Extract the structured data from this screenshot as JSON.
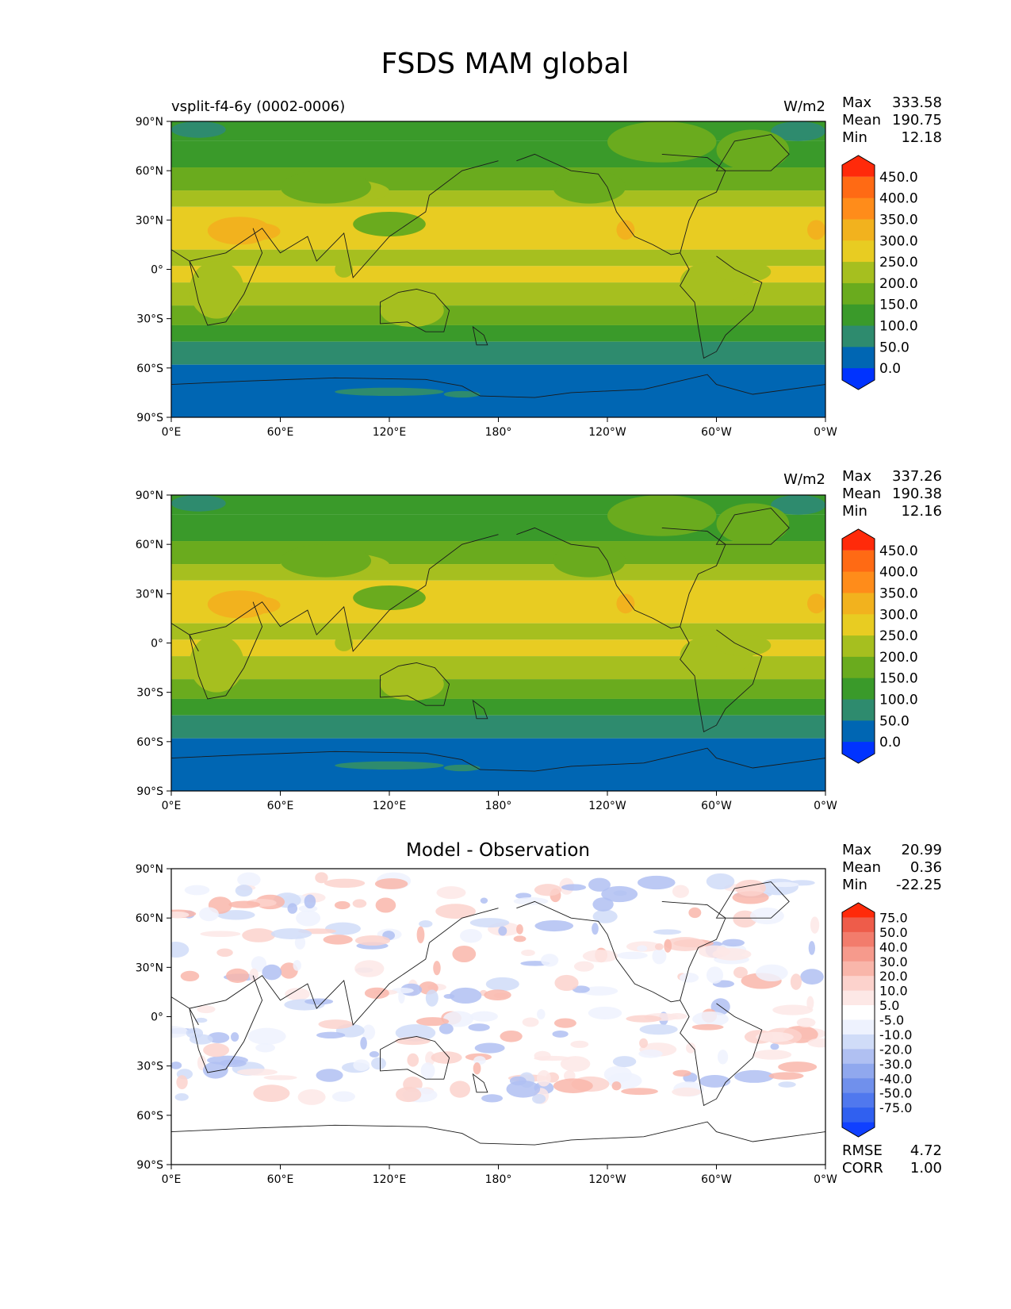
{
  "title": "FSDS MAM global",
  "lat_ticks": [
    "90°N",
    "60°N",
    "30°N",
    "0°",
    "30°S",
    "60°S",
    "90°S"
  ],
  "lon_ticks": [
    "0°E",
    "60°E",
    "120°E",
    "180°",
    "120°W",
    "60°W",
    "0°W"
  ],
  "colors": {
    "abs_levels": [
      "#0033ff",
      "#0066b3",
      "#2e8b6e",
      "#3a9a2a",
      "#6aab1e",
      "#a6bf1f",
      "#e8cc22",
      "#f2b21e",
      "#ff8c1a",
      "#ff6a14",
      "#ff2a0a"
    ],
    "diff_levels": [
      "#1040ff",
      "#3060f0",
      "#5078ee",
      "#7090ec",
      "#90a8ee",
      "#b0c0f2",
      "#d0dcf8",
      "#eef2fe",
      "#ffffff",
      "#fde8e6",
      "#fcd2cc",
      "#f9b6aa",
      "#f69a8c",
      "#f27c6c",
      "#ee5c4a",
      "#ff2a0a"
    ]
  },
  "chart_data": [
    {
      "type": "heatmap",
      "left_title": "vsplit-f4-6y (0002-0006)",
      "units": "W/m2",
      "stats": {
        "max_label": "Max",
        "max": "333.58",
        "mean_label": "Mean",
        "mean": "190.75",
        "min_label": "Min",
        "min": "12.18"
      },
      "colorbar_ticks": [
        "450.0",
        "400.0",
        "350.0",
        "300.0",
        "250.0",
        "200.0",
        "150.0",
        "100.0",
        "50.0",
        "0.0"
      ],
      "x_range": [
        0,
        360
      ],
      "y_range": [
        -90,
        90
      ]
    },
    {
      "type": "heatmap",
      "units": "W/m2",
      "stats": {
        "max_label": "Max",
        "max": "337.26",
        "mean_label": "Mean",
        "mean": "190.38",
        "min_label": "Min",
        "min": "12.16"
      },
      "colorbar_ticks": [
        "450.0",
        "400.0",
        "350.0",
        "300.0",
        "250.0",
        "200.0",
        "150.0",
        "100.0",
        "50.0",
        "0.0"
      ],
      "x_range": [
        0,
        360
      ],
      "y_range": [
        -90,
        90
      ]
    },
    {
      "type": "heatmap",
      "title": "Model - Observation",
      "stats": {
        "max_label": "Max",
        "max": "20.99",
        "mean_label": "Mean",
        "mean": "0.36",
        "min_label": "Min",
        "min": "-22.25"
      },
      "colorbar_ticks": [
        "75.0",
        "50.0",
        "40.0",
        "30.0",
        "20.0",
        "10.0",
        "5.0",
        "-5.0",
        "-10.0",
        "-20.0",
        "-30.0",
        "-40.0",
        "-50.0",
        "-75.0"
      ],
      "metrics": {
        "rmse_label": "RMSE",
        "rmse": "4.72",
        "corr_label": "CORR",
        "corr": "1.00"
      },
      "x_range": [
        0,
        360
      ],
      "y_range": [
        -90,
        90
      ]
    }
  ]
}
